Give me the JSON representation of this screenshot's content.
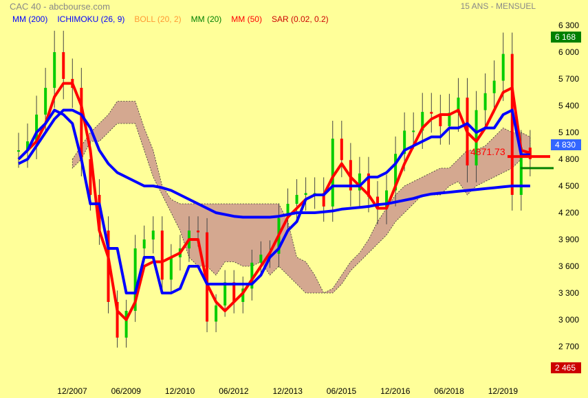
{
  "header": {
    "title": "CAC 40 - abcbourse.com",
    "period": "15 ANS - MENSUEL"
  },
  "legend": [
    {
      "label": "MM (200)",
      "color": "#0000ff"
    },
    {
      "label": "ICHIMOKU (26, 9)",
      "color": "#0000ff"
    },
    {
      "label": "BOLL (20, 2)",
      "color": "#ff9933"
    },
    {
      "label": "MM (20)",
      "color": "#008000"
    },
    {
      "label": "MM (50)",
      "color": "#ff0000"
    },
    {
      "label": "SAR (0.02, 0.2)",
      "color": "#cc0000"
    }
  ],
  "chart_data": {
    "type": "line",
    "title": "CAC 40",
    "ylim": [
      2400,
      6400
    ],
    "yticks": [
      "6 300",
      "6 000",
      "5 700",
      "5 400",
      "5 100",
      "4 800",
      "4 500",
      "4 200",
      "3 900",
      "3 600",
      "3 300",
      "3 000",
      "2 700"
    ],
    "xticks": [
      "12/2007",
      "06/2009",
      "12/2010",
      "06/2012",
      "12/2013",
      "06/2015",
      "12/2016",
      "06/2018",
      "12/2019"
    ],
    "x_start": "06/2006",
    "x_step_months": 3,
    "price": [
      4900,
      5000,
      5300,
      5600,
      6000,
      5700,
      5600,
      4800,
      4400,
      4000,
      3200,
      2800,
      3100,
      3800,
      3900,
      4000,
      3450,
      3700,
      3800,
      4000,
      3980,
      2980,
      3160,
      3420,
      3200,
      3350,
      3640,
      3730,
      3740,
      4140,
      4300,
      4400,
      4420,
      4420,
      4270,
      5030,
      4790,
      4450,
      4640,
      4380,
      4240,
      4450,
      4860,
      5120,
      5120,
      5330,
      5310,
      5170,
      5320,
      5490,
      4730,
      5350,
      5540,
      5680,
      5980,
      4400,
      4930,
      4800
    ],
    "series": [
      {
        "name": "MM (50)",
        "color": "#ff0000",
        "values": [
          4800,
          4900,
          5000,
          5200,
          5500,
          5650,
          5650,
          5400,
          4900,
          4000,
          3700,
          3100,
          3000,
          3200,
          3600,
          3650,
          3650,
          3700,
          3750,
          3900,
          3900,
          3400,
          3200,
          3100,
          3200,
          3300,
          3450,
          3600,
          3750,
          3950,
          4150,
          4250,
          4350,
          4400,
          4400,
          4600,
          4750,
          4600,
          4500,
          4400,
          4250,
          4250,
          4500,
          4750,
          4950,
          5150,
          5250,
          5300,
          5300,
          5350,
          5100,
          5000,
          5150,
          5350,
          5550,
          5600,
          4900,
          4870
        ]
      },
      {
        "name": "MM (200)",
        "color": "#0000ff",
        "values": [
          4750,
          4800,
          4950,
          5100,
          5250,
          5350,
          5350,
          5300,
          5150,
          4900,
          4750,
          4650,
          4600,
          4550,
          4500,
          4500,
          4480,
          4450,
          4400,
          4350,
          4300,
          4250,
          4200,
          4180,
          4160,
          4150,
          4150,
          4150,
          4150,
          4160,
          4180,
          4200,
          4200,
          4200,
          4210,
          4220,
          4240,
          4250,
          4260,
          4270,
          4290,
          4300,
          4320,
          4340,
          4360,
          4390,
          4410,
          4420,
          4430,
          4440,
          4450,
          4460,
          4470,
          4480,
          4490,
          4500,
          4500,
          4500
        ]
      },
      {
        "name": "ICHIMOKU (26, 9)",
        "color": "#0000ff",
        "values": [
          4800,
          4900,
          5100,
          5200,
          5350,
          5300,
          5200,
          4800,
          4300,
          4300,
          3800,
          3800,
          3300,
          3300,
          3700,
          3700,
          3300,
          3300,
          3350,
          3600,
          3600,
          3400,
          3400,
          3400,
          3400,
          3400,
          3400,
          3500,
          3700,
          3800,
          4000,
          4100,
          4350,
          4400,
          4400,
          4500,
          4500,
          4500,
          4500,
          4600,
          4600,
          4650,
          4750,
          4900,
          4950,
          5000,
          5050,
          5050,
          5150,
          5150,
          5200,
          5100,
          5150,
          5150,
          5300,
          5350,
          4850,
          4850
        ]
      }
    ],
    "cloud": {
      "color": "#d4a890",
      "top": [
        null,
        null,
        null,
        null,
        null,
        null,
        4800,
        4950,
        5100,
        5200,
        5300,
        5450,
        5450,
        5450,
        5150,
        4900,
        4500,
        4350,
        4300,
        4300,
        4300,
        4300,
        4300,
        4300,
        4300,
        4300,
        4300,
        4300,
        4300,
        4300,
        4100,
        3700,
        3650,
        3500,
        3300,
        3350,
        3500,
        3650,
        3750,
        3900,
        4100,
        4250,
        4400,
        4500,
        4550,
        4600,
        4650,
        4700,
        4700,
        4800,
        4900,
        4900,
        4950,
        5050,
        5150,
        5100,
        5100,
        5050
      ],
      "bottom": [
        null,
        null,
        null,
        null,
        null,
        null,
        4700,
        4800,
        5000,
        5000,
        5100,
        5200,
        5200,
        5200,
        4900,
        4600,
        4400,
        4200,
        4000,
        3700,
        3600,
        3600,
        3500,
        3650,
        3650,
        3600,
        3600,
        3650,
        3500,
        3600,
        3500,
        3400,
        3300,
        3300,
        3300,
        3300,
        3400,
        3550,
        3650,
        3750,
        3850,
        3950,
        4100,
        4200,
        4300,
        4400,
        4400,
        4400,
        4500,
        4550,
        4400,
        4500,
        4550,
        4600,
        4650,
        4700,
        4800,
        4900
      ]
    },
    "annotations": {
      "last_value": "4871.73",
      "current": "4 830",
      "high": "6 168",
      "low": "2 465"
    },
    "mm20_last": 4700,
    "colors": {
      "up": "#00cc00",
      "down": "#ff0000",
      "current": "#3366ff",
      "high": "#008000",
      "low": "#cc0000"
    }
  }
}
